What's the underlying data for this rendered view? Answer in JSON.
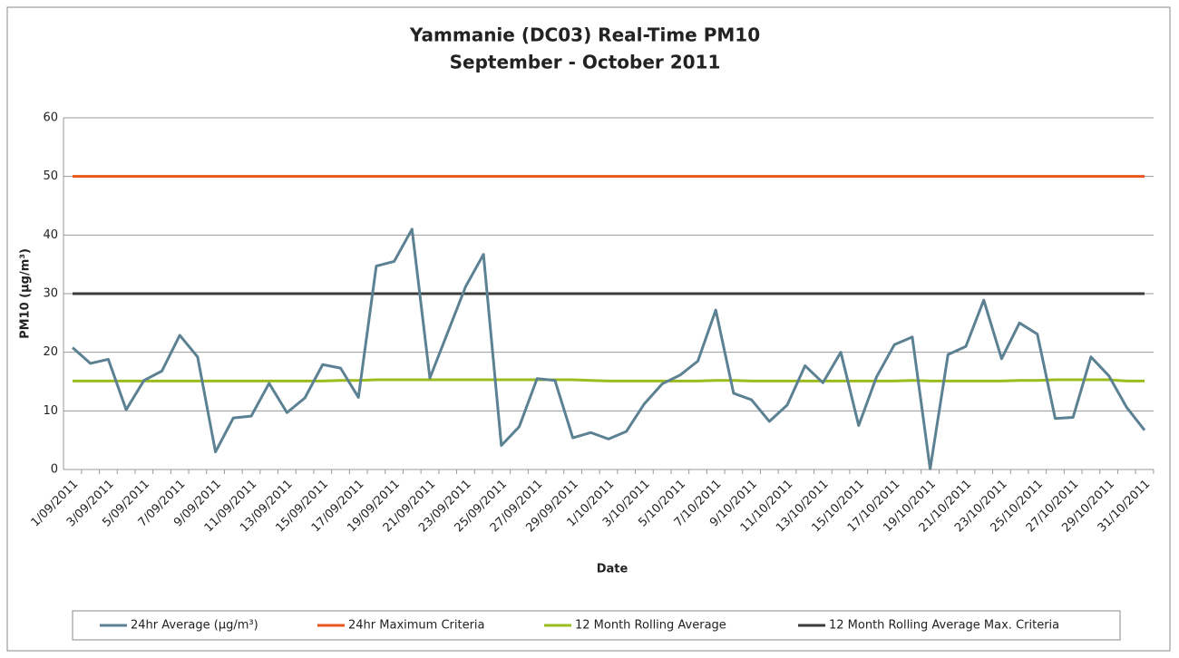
{
  "chart_data": {
    "type": "line",
    "title": "Yammanie (DC03) Real-Time PM10",
    "subtitle": "September - October 2011",
    "y_label": "PM10 (µg/m³)",
    "x_label": "Date",
    "categories": [
      "1/09/2011",
      null,
      "3/09/2011",
      null,
      "5/09/2011",
      null,
      "7/09/2011",
      null,
      "9/09/2011",
      null,
      "11/09/2011",
      null,
      "13/09/2011",
      null,
      "15/09/2011",
      null,
      "17/09/2011",
      null,
      "19/09/2011",
      null,
      "21/09/2011",
      null,
      "23/09/2011",
      null,
      "25/09/2011",
      null,
      "27/09/2011",
      null,
      "29/09/2011",
      null,
      "1/10/2011",
      null,
      "3/10/2011",
      null,
      "5/10/2011",
      null,
      "7/10/2011",
      null,
      "9/10/2011",
      null,
      "11/10/2011",
      null,
      "13/10/2011",
      null,
      "15/10/2011",
      null,
      "17/10/2011",
      null,
      "19/10/2011",
      null,
      "21/10/2011",
      null,
      "23/10/2011",
      null,
      "25/10/2011",
      null,
      "27/10/2011",
      null,
      "29/10/2011",
      null,
      "31/10/2011"
    ],
    "series": [
      {
        "name": "24hr Average (µg/m³)",
        "color": "#5b8193",
        "values": [
          20.8,
          18.1,
          18.8,
          10.2,
          15.2,
          16.8,
          22.9,
          19.2,
          3.0,
          8.8,
          9.1,
          14.7,
          9.7,
          12.2,
          17.9,
          17.3,
          12.3,
          34.7,
          35.5,
          41.0,
          15.6,
          23.4,
          31.2,
          36.7,
          4.1,
          7.3,
          15.5,
          15.2,
          5.4,
          6.3,
          5.2,
          6.5,
          11.2,
          14.6,
          16.1,
          18.5,
          27.2,
          13.0,
          11.9,
          8.2,
          11.0,
          17.7,
          14.8,
          20.0,
          7.5,
          15.8,
          21.3,
          22.6,
          0.1,
          19.6,
          21.0,
          28.9,
          18.9,
          25.0,
          23.1,
          8.7,
          8.9,
          19.2,
          16.0,
          10.6,
          6.7
        ]
      },
      {
        "name": "24hr Maximum Criteria",
        "color": "#e8561c",
        "values": [
          50,
          50,
          50,
          50,
          50,
          50,
          50,
          50,
          50,
          50,
          50,
          50,
          50,
          50,
          50,
          50,
          50,
          50,
          50,
          50,
          50,
          50,
          50,
          50,
          50,
          50,
          50,
          50,
          50,
          50,
          50,
          50,
          50,
          50,
          50,
          50,
          50,
          50,
          50,
          50,
          50,
          50,
          50,
          50,
          50,
          50,
          50,
          50,
          50,
          50,
          50,
          50,
          50,
          50,
          50,
          50,
          50,
          50,
          50,
          50,
          50
        ]
      },
      {
        "name": "12 Month Rolling Average",
        "color": "#9bbb1f",
        "values": [
          15.1,
          15.1,
          15.1,
          15.1,
          15.1,
          15.1,
          15.1,
          15.1,
          15.1,
          15.1,
          15.1,
          15.1,
          15.1,
          15.1,
          15.1,
          15.2,
          15.2,
          15.3,
          15.3,
          15.3,
          15.3,
          15.3,
          15.3,
          15.3,
          15.3,
          15.3,
          15.3,
          15.3,
          15.3,
          15.2,
          15.1,
          15.1,
          15.1,
          15.1,
          15.1,
          15.1,
          15.2,
          15.2,
          15.1,
          15.1,
          15.1,
          15.1,
          15.1,
          15.1,
          15.1,
          15.1,
          15.1,
          15.2,
          15.1,
          15.1,
          15.1,
          15.1,
          15.1,
          15.2,
          15.2,
          15.3,
          15.3,
          15.3,
          15.3,
          15.1,
          15.1
        ]
      },
      {
        "name": "12 Month Rolling Average Max. Criteria",
        "color": "#3b3b3b",
        "values": [
          30,
          30,
          30,
          30,
          30,
          30,
          30,
          30,
          30,
          30,
          30,
          30,
          30,
          30,
          30,
          30,
          30,
          30,
          30,
          30,
          30,
          30,
          30,
          30,
          30,
          30,
          30,
          30,
          30,
          30,
          30,
          30,
          30,
          30,
          30,
          30,
          30,
          30,
          30,
          30,
          30,
          30,
          30,
          30,
          30,
          30,
          30,
          30,
          30,
          30,
          30,
          30,
          30,
          30,
          30,
          30,
          30,
          30,
          30,
          30,
          30
        ]
      }
    ],
    "ylim": [
      0,
      60
    ],
    "yticks": [
      0,
      10,
      20,
      30,
      40,
      50,
      60
    ],
    "grid": true
  }
}
